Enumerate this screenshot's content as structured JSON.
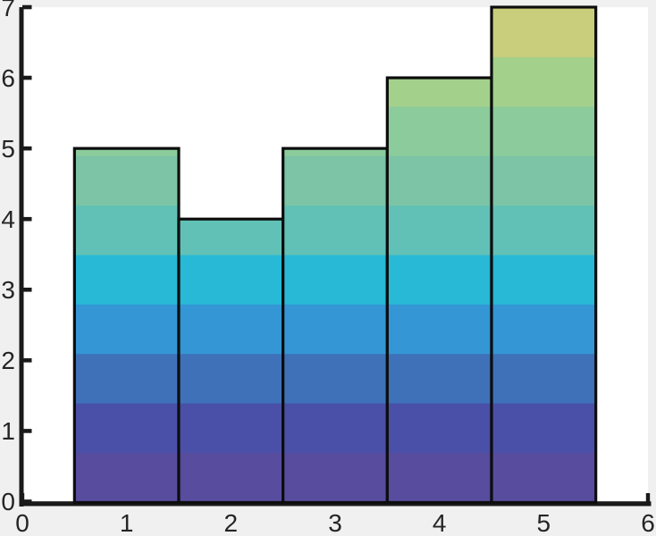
{
  "chart_data": {
    "type": "bar",
    "title": "",
    "xlabel": "",
    "ylabel": "",
    "x": [
      1,
      2,
      3,
      4,
      5
    ],
    "values": [
      5,
      4,
      5,
      6,
      7
    ],
    "bar_width": 1,
    "xlim": [
      0,
      6
    ],
    "ylim": [
      0,
      7
    ],
    "xticks": [
      0,
      1,
      2,
      3,
      4,
      5,
      6
    ],
    "xtick_labels": [
      "0",
      "1",
      "2",
      "3",
      "4",
      "5",
      "6"
    ],
    "yticks": [
      0,
      1,
      2,
      3,
      4,
      5,
      6,
      7
    ],
    "ytick_labels": [
      "0",
      "1",
      "2",
      "3",
      "4",
      "5",
      "6",
      "7"
    ],
    "grid": false,
    "legend": null,
    "tick_direction": "in",
    "spines": [
      "left",
      "bottom"
    ],
    "gradient_fill": {
      "orientation": "vertical",
      "mode": "discrete-bands-by-y-value",
      "band_height": 0.7,
      "range": [
        0,
        7
      ],
      "colors_bottom_to_top": [
        "#574c9e",
        "#4a50a7",
        "#3f71b9",
        "#3496d5",
        "#27b9d6",
        "#62c1b6",
        "#7dc3a6",
        "#8bcb9c",
        "#a3d18c",
        "#c9ce7d"
      ]
    }
  },
  "style_colors": {
    "figure_background": "#f0f0f0",
    "plot_background": "#ffffff",
    "axis_color": "#1a1a1a",
    "tick_label_color": "#252525",
    "bar_edge_color": "#0d0d0d"
  }
}
